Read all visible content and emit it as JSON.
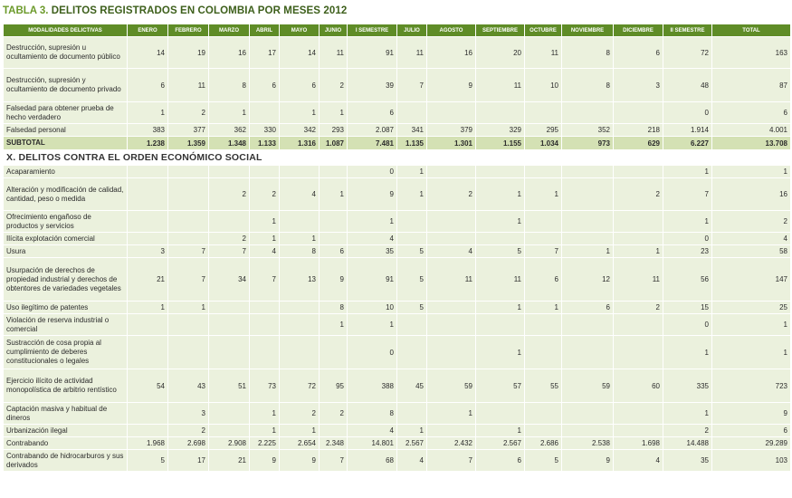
{
  "title": {
    "label": "TABLA 3.",
    "text": "DELITOS REGISTRADOS EN COLOMBIA POR MESES 2012"
  },
  "headers": [
    "MODALIDADES DELICTIVAS",
    "ENERO",
    "FEBRERO",
    "MARZO",
    "ABRIL",
    "MAYO",
    "JUNIO",
    "I SEMESTRE",
    "JULIO",
    "AGOSTO",
    "SEPTIEMBRE",
    "OCTUBRE",
    "NOVIEMBRE",
    "DICIEMBRE",
    "II SEMESTRE",
    "TOTAL"
  ],
  "rows": [
    {
      "type": "data",
      "h": 35,
      "label": "Destrucción, supresión u ocultamiento de documento público",
      "cells": [
        "14",
        "19",
        "16",
        "17",
        "14",
        "11",
        "91",
        "11",
        "16",
        "20",
        "11",
        "8",
        "6",
        "72",
        "163"
      ]
    },
    {
      "type": "data",
      "h": 37,
      "label": "Destrucción, supresión y ocultamiento de documento privado",
      "cells": [
        "6",
        "11",
        "8",
        "6",
        "6",
        "2",
        "39",
        "7",
        "9",
        "11",
        "10",
        "8",
        "3",
        "48",
        "87"
      ]
    },
    {
      "type": "data",
      "h": 24,
      "label": "Falsedad para obtener prueba de hecho verdadero",
      "cells": [
        "1",
        "2",
        "1",
        "",
        "1",
        "1",
        "6",
        "",
        "",
        "",
        "",
        "",
        "",
        "0",
        "6"
      ]
    },
    {
      "type": "data",
      "h": 14,
      "label": "Falsedad personal",
      "cells": [
        "383",
        "377",
        "362",
        "330",
        "342",
        "293",
        "2.087",
        "341",
        "379",
        "329",
        "295",
        "352",
        "218",
        "1.914",
        "4.001"
      ]
    },
    {
      "type": "subtotal",
      "label": "SUBTOTAL",
      "cells": [
        "1.238",
        "1.359",
        "1.348",
        "1.133",
        "1.316",
        "1.087",
        "7.481",
        "1.135",
        "1.301",
        "1.155",
        "1.034",
        "973",
        "629",
        "6.227",
        "13.708"
      ]
    },
    {
      "type": "section",
      "label": "X. DELITOS CONTRA EL ORDEN ECONÓMICO SOCIAL"
    },
    {
      "type": "data",
      "h": 14,
      "label": "Acaparamiento",
      "cells": [
        "",
        "",
        "",
        "",
        "",
        "",
        "0",
        "1",
        "",
        "",
        "",
        "",
        "",
        "1",
        "1"
      ]
    },
    {
      "type": "data",
      "h": 36,
      "label": "Alteración y modificación de calidad, cantidad, peso o medida",
      "cells": [
        "",
        "",
        "2",
        "2",
        "4",
        "1",
        "9",
        "1",
        "2",
        "1",
        "1",
        "",
        "2",
        "7",
        "16"
      ]
    },
    {
      "type": "data",
      "h": 24,
      "label": "Ofrecimiento engañoso de productos y servicios",
      "cells": [
        "",
        "",
        "",
        "1",
        "",
        "",
        "1",
        "",
        "",
        "1",
        "",
        "",
        "",
        "1",
        "2"
      ]
    },
    {
      "type": "data",
      "h": 14,
      "label": "Ilícita explotación comercial",
      "cells": [
        "",
        "",
        "2",
        "1",
        "1",
        "",
        "4",
        "",
        "",
        "",
        "",
        "",
        "",
        "0",
        "4"
      ]
    },
    {
      "type": "data",
      "h": 14,
      "label": "Usura",
      "cells": [
        "3",
        "7",
        "7",
        "4",
        "8",
        "6",
        "35",
        "5",
        "4",
        "5",
        "7",
        "1",
        "1",
        "23",
        "58"
      ]
    },
    {
      "type": "data",
      "h": 48,
      "label": "Usurpación de derechos de propiedad industrial y derechos de obtentores de variedades vegetales",
      "cells": [
        "21",
        "7",
        "34",
        "7",
        "13",
        "9",
        "91",
        "5",
        "11",
        "11",
        "6",
        "12",
        "11",
        "56",
        "147"
      ]
    },
    {
      "type": "data",
      "h": 14,
      "label": "Uso ilegítimo de patentes",
      "cells": [
        "1",
        "1",
        "",
        "",
        "",
        "8",
        "10",
        "5",
        "",
        "1",
        "1",
        "6",
        "2",
        "15",
        "25"
      ]
    },
    {
      "type": "data",
      "h": 24,
      "label": "Violación de reserva industrial o comercial",
      "cells": [
        "",
        "",
        "",
        "",
        "",
        "1",
        "1",
        "",
        "",
        "",
        "",
        "",
        "",
        "0",
        "1"
      ]
    },
    {
      "type": "data",
      "h": 37,
      "label": "Sustracción de cosa propia al cumplimiento de deberes constitucionales o legales",
      "cells": [
        "",
        "",
        "",
        "",
        "",
        "",
        "0",
        "",
        "",
        "1",
        "",
        "",
        "",
        "1",
        "1"
      ]
    },
    {
      "type": "data",
      "h": 37,
      "label": "Ejercicio ilícito de actividad monopolística de arbitrio rentístico",
      "cells": [
        "54",
        "43",
        "51",
        "73",
        "72",
        "95",
        "388",
        "45",
        "59",
        "57",
        "55",
        "59",
        "60",
        "335",
        "723"
      ]
    },
    {
      "type": "data",
      "h": 24,
      "label": "Captación masiva y habitual de dineros",
      "cells": [
        "",
        "3",
        "",
        "1",
        "2",
        "2",
        "8",
        "",
        "1",
        "",
        "",
        "",
        "",
        "1",
        "9"
      ]
    },
    {
      "type": "data",
      "h": 14,
      "label": "Urbanización ilegal",
      "cells": [
        "",
        "2",
        "",
        "1",
        "1",
        "",
        "4",
        "1",
        "",
        "1",
        "",
        "",
        "",
        "2",
        "6"
      ]
    },
    {
      "type": "data",
      "h": 14,
      "label": "Contrabando",
      "cells": [
        "1.968",
        "2.698",
        "2.908",
        "2.225",
        "2.654",
        "2.348",
        "14.801",
        "2.567",
        "2.432",
        "2.567",
        "2.686",
        "2.538",
        "1.698",
        "14.488",
        "29.289"
      ]
    },
    {
      "type": "data",
      "h": 24,
      "label": "Contrabando de hidrocarburos y sus derivados",
      "cells": [
        "5",
        "17",
        "21",
        "9",
        "9",
        "7",
        "68",
        "4",
        "7",
        "6",
        "5",
        "9",
        "4",
        "35",
        "103"
      ]
    }
  ]
}
